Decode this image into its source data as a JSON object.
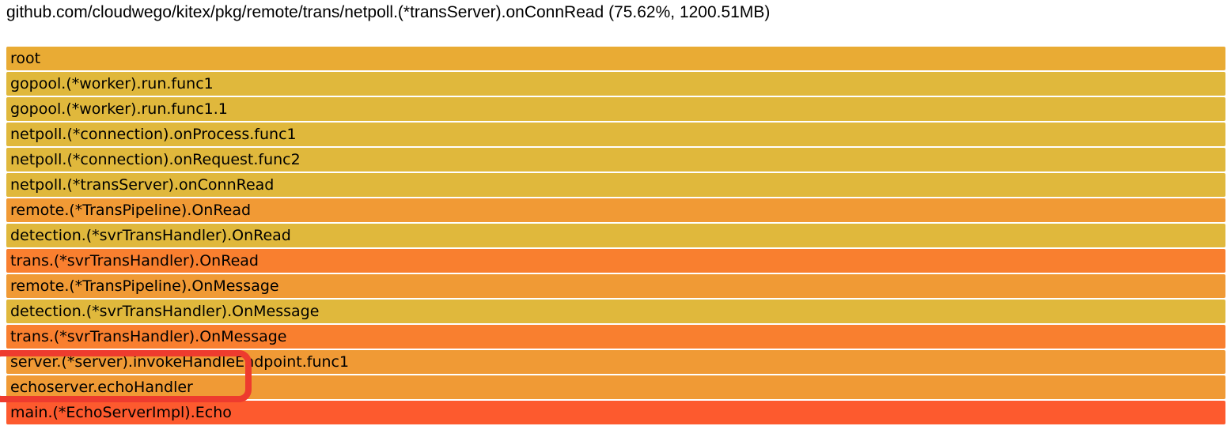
{
  "header": {
    "title": "github.com/cloudwego/kitex/pkg/remote/trans/netpoll.(*transServer).onConnRead (75.62%, 1200.51MB)"
  },
  "chart_data": {
    "type": "bar",
    "subtype": "flamegraph",
    "orientation": "horizontal",
    "title": "github.com/cloudwego/kitex/pkg/remote/trans/netpoll.(*transServer).onConnRead (75.62%, 1200.51MB)",
    "selected_frame": {
      "function": "github.com/cloudwego/kitex/pkg/remote/trans/netpoll.(*transServer).onConnRead",
      "percent": 75.62,
      "size_mb": 1200.51
    },
    "frames": [
      {
        "label": "root",
        "color": "#e9ab34",
        "width_pct": 100
      },
      {
        "label": "gopool.(*worker).run.func1",
        "color": "#e0b83c",
        "width_pct": 100
      },
      {
        "label": "gopool.(*worker).run.func1.1",
        "color": "#e0b83c",
        "width_pct": 100
      },
      {
        "label": "netpoll.(*connection).onProcess.func1",
        "color": "#e0b83c",
        "width_pct": 100
      },
      {
        "label": "netpoll.(*connection).onRequest.func2",
        "color": "#e0b83c",
        "width_pct": 100
      },
      {
        "label": "netpoll.(*transServer).onConnRead",
        "color": "#e0b83c",
        "width_pct": 100
      },
      {
        "label": "remote.(*TransPipeline).OnRead",
        "color": "#f19a35",
        "width_pct": 100
      },
      {
        "label": "detection.(*svrTransHandler).OnRead",
        "color": "#e0b83c",
        "width_pct": 100
      },
      {
        "label": "trans.(*svrTransHandler).OnRead",
        "color": "#f97f2f",
        "width_pct": 100
      },
      {
        "label": "remote.(*TransPipeline).OnMessage",
        "color": "#f09a35",
        "width_pct": 100
      },
      {
        "label": "detection.(*svrTransHandler).OnMessage",
        "color": "#e0b83c",
        "width_pct": 100
      },
      {
        "label": "trans.(*svrTransHandler).OnMessage",
        "color": "#f97f2f",
        "width_pct": 100
      },
      {
        "label": "server.(*server).invokeHandleEndpoint.func1",
        "color": "#f09a35",
        "width_pct": 100
      },
      {
        "label": "echoserver.echoHandler",
        "color": "#f09a35",
        "width_pct": 100
      },
      {
        "label": "main.(*EchoServerImpl).Echo",
        "color": "#fd5a2e",
        "width_pct": 100
      }
    ],
    "annotated_frames": [
      "server.(*server).invokeHandleEndpoint.func1",
      "echoserver.echoHandler"
    ]
  },
  "annotation": {
    "box_color": "#ee3b2e"
  },
  "colors": {
    "background": "#ffffff",
    "text": "#000000"
  }
}
